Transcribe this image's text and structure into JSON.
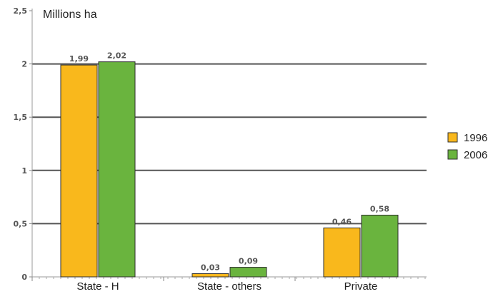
{
  "chart_data": {
    "type": "bar",
    "unit_label": "Millions ha",
    "categories": [
      "State - H",
      "State - others",
      "Private"
    ],
    "series": [
      {
        "name": "1996",
        "color": "#f9b81c",
        "values": [
          1.99,
          0.03,
          0.46
        ],
        "value_labels": [
          "1,99",
          "0,03",
          "0,46"
        ]
      },
      {
        "name": "2006",
        "color": "#6ab43e",
        "values": [
          2.02,
          0.09,
          0.58
        ],
        "value_labels": [
          "2,02",
          "0,09",
          "0,58"
        ]
      }
    ],
    "y_ticks": [
      {
        "value": 0,
        "label": "0"
      },
      {
        "value": 0.5,
        "label": "0,5"
      },
      {
        "value": 1,
        "label": "1"
      },
      {
        "value": 1.5,
        "label": "1,5"
      },
      {
        "value": 2,
        "label": "2"
      },
      {
        "value": 2.5,
        "label": "2,5"
      }
    ],
    "ylim": [
      0,
      2.5
    ],
    "grid": true,
    "legend": "right"
  }
}
